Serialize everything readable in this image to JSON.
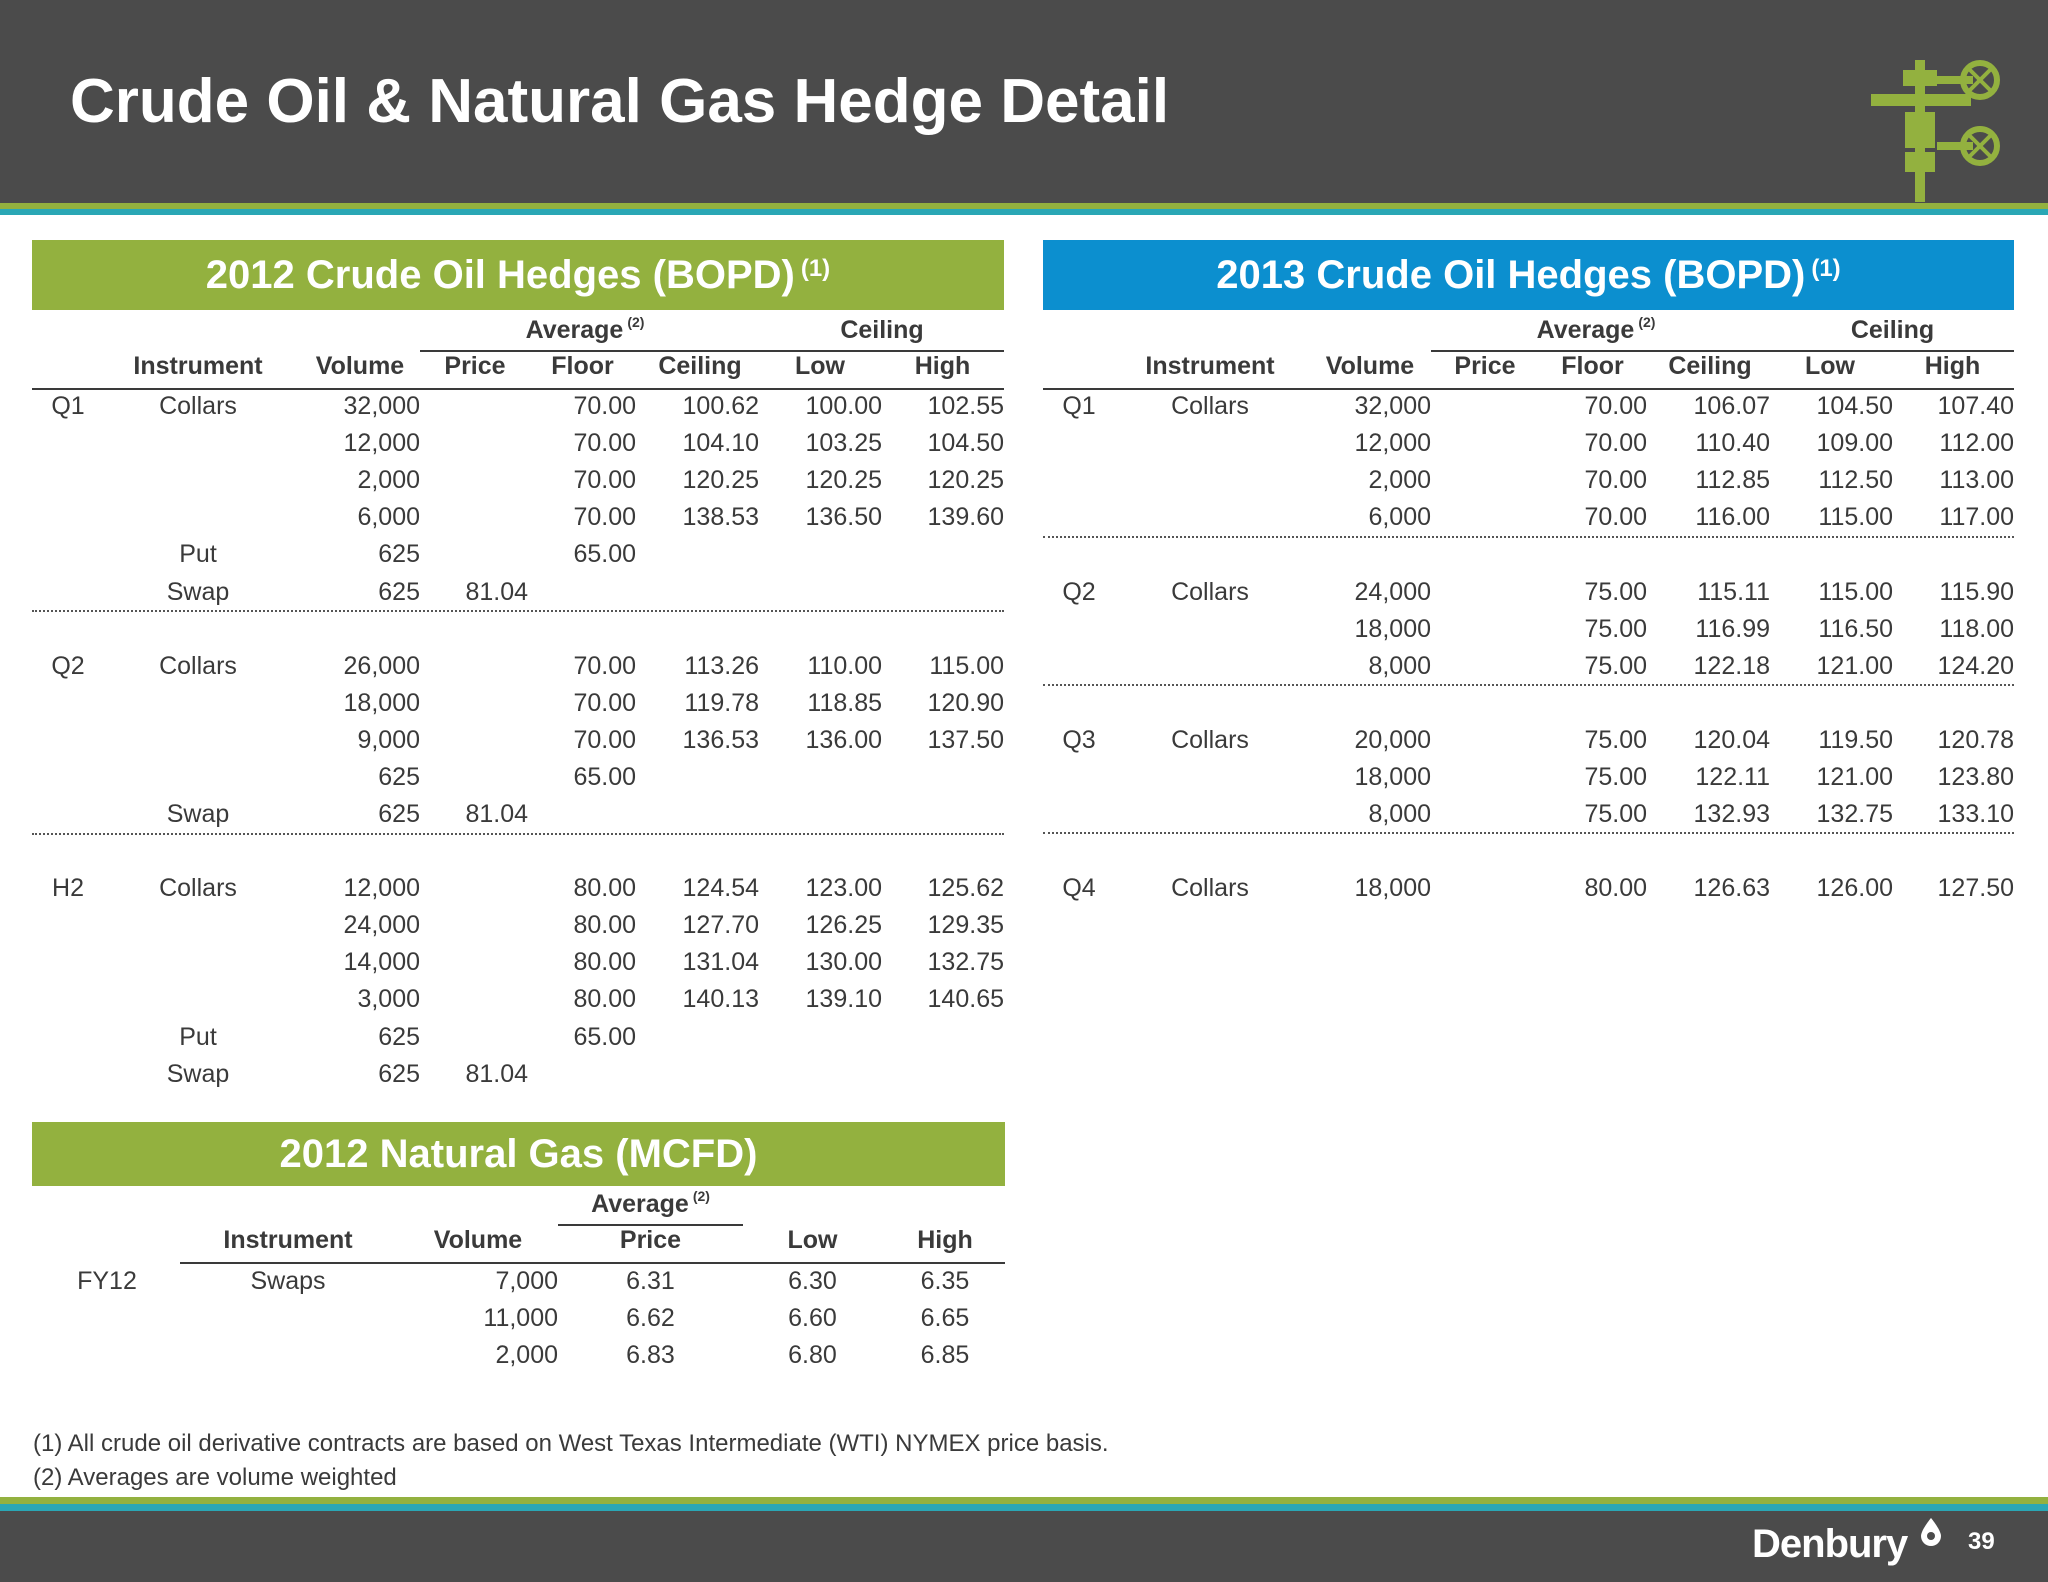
{
  "title": "Crude Oil & Natural Gas Hedge Detail",
  "section2012": {
    "title": "2012 Crude Oil Hedges (BOPD)",
    "note": "(1)",
    "group_headers": {
      "average": "Average",
      "average_note": "(2)",
      "ceiling": "Ceiling"
    },
    "columns": [
      "Instrument",
      "Volume",
      "Price",
      "Floor",
      "Ceiling",
      "Low",
      "High"
    ],
    "rows": [
      {
        "period": "Q1",
        "instrument": "Collars",
        "volume": "32,000",
        "price": "",
        "floor": "70.00",
        "ceiling": "100.62",
        "low": "100.00",
        "high": "102.55"
      },
      {
        "period": "",
        "instrument": "",
        "volume": "12,000",
        "price": "",
        "floor": "70.00",
        "ceiling": "104.10",
        "low": "103.25",
        "high": "104.50"
      },
      {
        "period": "",
        "instrument": "",
        "volume": "2,000",
        "price": "",
        "floor": "70.00",
        "ceiling": "120.25",
        "low": "120.25",
        "high": "120.25"
      },
      {
        "period": "",
        "instrument": "",
        "volume": "6,000",
        "price": "",
        "floor": "70.00",
        "ceiling": "138.53",
        "low": "136.50",
        "high": "139.60"
      },
      {
        "period": "",
        "instrument": "Put",
        "volume": "625",
        "price": "",
        "floor": "65.00",
        "ceiling": "",
        "low": "",
        "high": ""
      },
      {
        "period": "",
        "instrument": "Swap",
        "volume": "625",
        "price": "81.04",
        "floor": "",
        "ceiling": "",
        "low": "",
        "high": ""
      },
      {
        "period": "Q2",
        "instrument": "Collars",
        "volume": "26,000",
        "price": "",
        "floor": "70.00",
        "ceiling": "113.26",
        "low": "110.00",
        "high": "115.00"
      },
      {
        "period": "",
        "instrument": "",
        "volume": "18,000",
        "price": "",
        "floor": "70.00",
        "ceiling": "119.78",
        "low": "118.85",
        "high": "120.90"
      },
      {
        "period": "",
        "instrument": "",
        "volume": "9,000",
        "price": "",
        "floor": "70.00",
        "ceiling": "136.53",
        "low": "136.00",
        "high": "137.50"
      },
      {
        "period": "",
        "instrument": "",
        "volume": "625",
        "price": "",
        "floor": "65.00",
        "ceiling": "",
        "low": "",
        "high": ""
      },
      {
        "period": "",
        "instrument": "Swap",
        "volume": "625",
        "price": "81.04",
        "floor": "",
        "ceiling": "",
        "low": "",
        "high": ""
      },
      {
        "period": "H2",
        "instrument": "Collars",
        "volume": "12,000",
        "price": "",
        "floor": "80.00",
        "ceiling": "124.54",
        "low": "123.00",
        "high": "125.62"
      },
      {
        "period": "",
        "instrument": "",
        "volume": "24,000",
        "price": "",
        "floor": "80.00",
        "ceiling": "127.70",
        "low": "126.25",
        "high": "129.35"
      },
      {
        "period": "",
        "instrument": "",
        "volume": "14,000",
        "price": "",
        "floor": "80.00",
        "ceiling": "131.04",
        "low": "130.00",
        "high": "132.75"
      },
      {
        "period": "",
        "instrument": "",
        "volume": "3,000",
        "price": "",
        "floor": "80.00",
        "ceiling": "140.13",
        "low": "139.10",
        "high": "140.65"
      },
      {
        "period": "",
        "instrument": "Put",
        "volume": "625",
        "price": "",
        "floor": "65.00",
        "ceiling": "",
        "low": "",
        "high": ""
      },
      {
        "period": "",
        "instrument": "Swap",
        "volume": "625",
        "price": "81.04",
        "floor": "",
        "ceiling": "",
        "low": "",
        "high": ""
      }
    ]
  },
  "section2013": {
    "title": "2013 Crude Oil Hedges (BOPD)",
    "note": "(1)",
    "group_headers": {
      "average": "Average",
      "average_note": "(2)",
      "ceiling": "Ceiling"
    },
    "columns": [
      "Instrument",
      "Volume",
      "Price",
      "Floor",
      "Ceiling",
      "Low",
      "High"
    ],
    "rows": [
      {
        "period": "Q1",
        "instrument": "Collars",
        "volume": "32,000",
        "price": "",
        "floor": "70.00",
        "ceiling": "106.07",
        "low": "104.50",
        "high": "107.40"
      },
      {
        "period": "",
        "instrument": "",
        "volume": "12,000",
        "price": "",
        "floor": "70.00",
        "ceiling": "110.40",
        "low": "109.00",
        "high": "112.00"
      },
      {
        "period": "",
        "instrument": "",
        "volume": "2,000",
        "price": "",
        "floor": "70.00",
        "ceiling": "112.85",
        "low": "112.50",
        "high": "113.00"
      },
      {
        "period": "",
        "instrument": "",
        "volume": "6,000",
        "price": "",
        "floor": "70.00",
        "ceiling": "116.00",
        "low": "115.00",
        "high": "117.00"
      },
      {
        "period": "Q2",
        "instrument": "Collars",
        "volume": "24,000",
        "price": "",
        "floor": "75.00",
        "ceiling": "115.11",
        "low": "115.00",
        "high": "115.90"
      },
      {
        "period": "",
        "instrument": "",
        "volume": "18,000",
        "price": "",
        "floor": "75.00",
        "ceiling": "116.99",
        "low": "116.50",
        "high": "118.00"
      },
      {
        "period": "",
        "instrument": "",
        "volume": "8,000",
        "price": "",
        "floor": "75.00",
        "ceiling": "122.18",
        "low": "121.00",
        "high": "124.20"
      },
      {
        "period": "Q3",
        "instrument": "Collars",
        "volume": "20,000",
        "price": "",
        "floor": "75.00",
        "ceiling": "120.04",
        "low": "119.50",
        "high": "120.78"
      },
      {
        "period": "",
        "instrument": "",
        "volume": "18,000",
        "price": "",
        "floor": "75.00",
        "ceiling": "122.11",
        "low": "121.00",
        "high": "123.80"
      },
      {
        "period": "",
        "instrument": "",
        "volume": "8,000",
        "price": "",
        "floor": "75.00",
        "ceiling": "132.93",
        "low": "132.75",
        "high": "133.10"
      },
      {
        "period": "Q4",
        "instrument": "Collars",
        "volume": "18,000",
        "price": "",
        "floor": "80.00",
        "ceiling": "126.63",
        "low": "126.00",
        "high": "127.50"
      }
    ]
  },
  "gas2012": {
    "title": "2012 Natural Gas (MCFD)",
    "group_headers": {
      "average": "Average",
      "average_note": "(2)"
    },
    "columns": [
      "Instrument",
      "Volume",
      "Price",
      "Low",
      "High"
    ],
    "rows": [
      {
        "period": "FY12",
        "instrument": "Swaps",
        "volume": "7,000",
        "price": "6.31",
        "low": "6.30",
        "high": "6.35"
      },
      {
        "period": "",
        "instrument": "",
        "volume": "11,000",
        "price": "6.62",
        "low": "6.60",
        "high": "6.65"
      },
      {
        "period": "",
        "instrument": "",
        "volume": "2,000",
        "price": "6.83",
        "low": "6.80",
        "high": "6.85"
      }
    ]
  },
  "footnotes": [
    "(1)  All crude oil derivative contracts are based on West Texas Intermediate (WTI) NYMEX price basis.",
    "(2)  Averages are volume weighted"
  ],
  "footer": {
    "brand": "Denbury",
    "page_number": "39"
  },
  "colors": {
    "header_bg": "#4b4b4b",
    "green": "#93b13f",
    "blue": "#0c8fcf",
    "teal_stripe": "#2aa7b5",
    "text": "#3a3a3a"
  },
  "icons": [
    "wellhead-icon",
    "oil-drop-icon"
  ]
}
